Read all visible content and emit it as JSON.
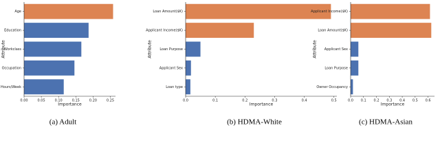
{
  "chart_data": [
    {
      "type": "barh",
      "xlabel": "Importance",
      "ylabel": "Attribute",
      "caption": "(a) Adult",
      "categories": [
        "Age",
        "Education",
        "Workclass",
        "Occupation",
        "Hours/Week"
      ],
      "values": [
        0.258,
        0.187,
        0.166,
        0.146,
        0.115
      ],
      "colors": [
        "#dd8452",
        "#4c72b0",
        "#4c72b0",
        "#4c72b0",
        "#4c72b0"
      ],
      "xlim": [
        0,
        0.265
      ],
      "xticks": [
        {
          "value": 0,
          "label": "0.00"
        },
        {
          "value": 0.05,
          "label": "0.05"
        },
        {
          "value": 0.1,
          "label": "0.10"
        },
        {
          "value": 0.15,
          "label": "0.15"
        },
        {
          "value": 0.2,
          "label": "0.20"
        },
        {
          "value": 0.25,
          "label": "0.25"
        }
      ]
    },
    {
      "type": "barh",
      "xlabel": "Importance",
      "ylabel": "Attribute",
      "caption": "(b) HDMA-White",
      "categories": [
        "Loan Amount($K)",
        "Applicant Income($K)",
        "Loan Purpose",
        "Applicant Sex",
        "Loan type"
      ],
      "values": [
        0.49,
        0.23,
        0.05,
        0.018,
        0.016
      ],
      "colors": [
        "#dd8452",
        "#dd8452",
        "#4c72b0",
        "#4c72b0",
        "#4c72b0"
      ],
      "xlim": [
        0,
        0.51
      ],
      "xticks": [
        {
          "value": 0,
          "label": "0.0"
        },
        0.1,
        0.2,
        0.3,
        0.4,
        0.5
      ]
    },
    {
      "type": "barh",
      "xlabel": "Importance",
      "ylabel": "Attribute",
      "caption": "(c) HDMA-Asian",
      "categories": [
        "Applicant Income($K)",
        "Loan Amount($K)",
        "Applicant Sex",
        "Loan Purpose",
        "Owner Occupancy"
      ],
      "values": [
        0.615,
        0.625,
        0.06,
        0.06,
        0.018
      ],
      "colors": [
        "#dd8452",
        "#dd8452",
        "#4c72b0",
        "#4c72b0",
        "#4c72b0"
      ],
      "xlim": [
        0,
        0.65
      ],
      "xticks": [
        {
          "value": 0,
          "label": "0.0"
        },
        0.1,
        0.2,
        0.3,
        0.4,
        0.5,
        0.6
      ]
    }
  ]
}
